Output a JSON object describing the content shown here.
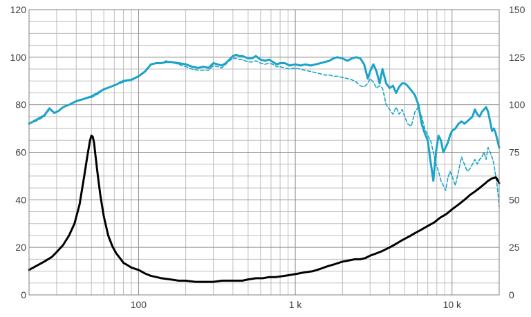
{
  "chart_data": {
    "type": "line",
    "title": "",
    "xlabel": "",
    "ylabel": "",
    "y2label": "",
    "x_scale": "log",
    "xlim": [
      20,
      20000
    ],
    "ylim": [
      0,
      120
    ],
    "y2lim": [
      0,
      150
    ],
    "grid": true,
    "legend": "none",
    "x_tick_labels": [
      {
        "value": 100,
        "label": "100"
      },
      {
        "value": 1000,
        "label": "1 k"
      },
      {
        "value": 10000,
        "label": "10 k"
      }
    ],
    "y_tick_labels": [
      "0",
      "20",
      "40",
      "60",
      "80",
      "100",
      "120"
    ],
    "y2_tick_labels": [
      "0",
      "25",
      "50",
      "75",
      "100",
      "125",
      "150"
    ],
    "series": [
      {
        "axis": "left",
        "color": "#1ba3c8",
        "style": "solid",
        "x": [
          20,
          22,
          25,
          27,
          29,
          31,
          33,
          36,
          40,
          45,
          50,
          55,
          60,
          66,
          72,
          80,
          90,
          100,
          110,
          120,
          130,
          140,
          150,
          160,
          180,
          200,
          220,
          240,
          260,
          280,
          300,
          320,
          340,
          360,
          380,
          400,
          420,
          440,
          460,
          480,
          500,
          530,
          560,
          600,
          640,
          680,
          720,
          760,
          800,
          860,
          920,
          1000,
          1080,
          1160,
          1250,
          1350,
          1450,
          1550,
          1650,
          1750,
          1850,
          2000,
          2150,
          2300,
          2450,
          2600,
          2750,
          2900,
          3000,
          3150,
          3300,
          3450,
          3600,
          3800,
          4000,
          4200,
          4400,
          4600,
          4800,
          5000,
          5200,
          5500,
          5800,
          6100,
          6400,
          6700,
          7000,
          7300,
          7600,
          7900,
          8200,
          8500,
          8800,
          9100,
          9400,
          9700,
          10000,
          10500,
          11000,
          11500,
          12000,
          12500,
          13000,
          13500,
          14000,
          14500,
          15000,
          15500,
          16000,
          16500,
          17000,
          17500,
          18000,
          18500,
          19000,
          19500,
          20000
        ],
        "y": [
          72,
          73.5,
          75.5,
          78.5,
          76.5,
          77.5,
          79,
          80,
          81.5,
          82.5,
          83.5,
          85,
          86.5,
          87.5,
          88.5,
          90,
          90.5,
          92,
          94,
          97,
          97.5,
          97.5,
          98,
          98,
          97.5,
          97,
          96,
          95.5,
          96,
          95.5,
          97.5,
          97,
          96.5,
          97.5,
          99,
          100.5,
          101,
          100.5,
          100.5,
          100,
          99.5,
          99.5,
          100.5,
          99,
          98.5,
          99,
          98,
          97,
          97.5,
          97.5,
          96.5,
          97,
          96.5,
          97,
          96.5,
          97,
          97.5,
          98,
          98.5,
          99.5,
          100,
          99.5,
          98.5,
          99.5,
          100,
          99.5,
          97,
          91,
          94,
          97,
          94,
          89,
          95,
          89,
          87,
          88,
          85,
          87.5,
          89,
          89,
          88,
          86,
          84,
          80,
          72,
          68,
          65,
          56,
          48,
          60,
          67,
          65,
          60,
          62,
          64,
          67,
          69,
          70,
          72,
          73,
          72,
          73,
          74,
          75,
          78,
          76,
          75,
          77,
          78,
          79,
          77,
          73,
          69,
          70,
          68,
          65,
          62
        ]
      },
      {
        "axis": "left",
        "color": "#1ba3c8",
        "style": "dashed",
        "x": [
          20,
          22,
          25,
          27,
          29,
          31,
          33,
          36,
          40,
          45,
          50,
          55,
          60,
          66,
          72,
          80,
          90,
          100,
          110,
          120,
          130,
          140,
          150,
          160,
          180,
          200,
          220,
          240,
          260,
          280,
          300,
          320,
          340,
          360,
          380,
          400,
          420,
          440,
          460,
          480,
          500,
          530,
          560,
          600,
          640,
          680,
          720,
          760,
          800,
          860,
          920,
          1000,
          1080,
          1160,
          1250,
          1350,
          1450,
          1550,
          1650,
          1750,
          1850,
          2000,
          2150,
          2300,
          2450,
          2600,
          2750,
          2900,
          3000,
          3150,
          3300,
          3450,
          3600,
          3800,
          4000,
          4200,
          4400,
          4600,
          4800,
          5000,
          5200,
          5500,
          5800,
          6100,
          6400,
          6700,
          7000,
          7300,
          7600,
          7900,
          8200,
          8500,
          8800,
          9100,
          9400,
          9700,
          10000,
          10500,
          11000,
          11500,
          12000,
          12500,
          13000,
          13500,
          14000,
          14500,
          15000,
          15500,
          16000,
          16500,
          17000,
          17500,
          18000,
          18500,
          19000,
          19500,
          20000
        ],
        "y": [
          72,
          73,
          75,
          78,
          76.5,
          77.5,
          79,
          80,
          81.5,
          82.5,
          83,
          84.5,
          86.5,
          87.5,
          88.5,
          89.5,
          90.5,
          92,
          94,
          97,
          97.5,
          97.5,
          98.5,
          98,
          97,
          96,
          95,
          94.5,
          94.5,
          94.5,
          96.5,
          96,
          95.5,
          97,
          98.5,
          99.5,
          99.5,
          99,
          99,
          98.5,
          98,
          98,
          98.5,
          97.5,
          97,
          97.5,
          97,
          96,
          96,
          95.5,
          95,
          95.5,
          95,
          94.5,
          94,
          93.5,
          93,
          92.5,
          92.5,
          92,
          92,
          91.5,
          91,
          90.5,
          89.5,
          88,
          87.5,
          89,
          91,
          89.5,
          87,
          88,
          87,
          80,
          78,
          76,
          79,
          76,
          78,
          75,
          72,
          71,
          77,
          79,
          75,
          70,
          67,
          65,
          60,
          55,
          52,
          48,
          46,
          44,
          49,
          52,
          50,
          46,
          52,
          58,
          55,
          52,
          53,
          55,
          57,
          55,
          57,
          58,
          60,
          57,
          62,
          60,
          58,
          55,
          50,
          45,
          37
        ]
      },
      {
        "axis": "left",
        "color": "#000000",
        "style": "solid",
        "x": [
          20,
          22,
          25,
          28,
          30,
          33,
          36,
          39,
          42,
          45,
          47,
          49,
          50,
          51,
          52,
          53,
          55,
          57,
          60,
          64,
          68,
          72,
          76,
          80,
          85,
          90,
          95,
          100,
          110,
          120,
          130,
          140,
          160,
          180,
          200,
          230,
          260,
          300,
          340,
          380,
          420,
          460,
          500,
          560,
          620,
          680,
          750,
          850,
          950,
          1050,
          1150,
          1300,
          1450,
          1600,
          1800,
          2000,
          2200,
          2400,
          2600,
          2800,
          3000,
          3300,
          3600,
          4000,
          4400,
          4800,
          5300,
          5800,
          6400,
          7000,
          7700,
          8400,
          9200,
          10000,
          11000,
          12000,
          13000,
          14000,
          15000,
          16000,
          17000,
          18000,
          19000,
          19500,
          20000
        ],
        "y": [
          10.5,
          12,
          14,
          16,
          18,
          21,
          25,
          30,
          38,
          50,
          58,
          65,
          67,
          66.5,
          64,
          59,
          50,
          42,
          33,
          25,
          20.5,
          17.5,
          15.5,
          13.5,
          12.5,
          11.5,
          11,
          10.5,
          9,
          8,
          7.5,
          7,
          6.5,
          6,
          6,
          5.5,
          5.5,
          5.5,
          6,
          6,
          6,
          6,
          6.5,
          7,
          7,
          7.5,
          7.5,
          8,
          8.5,
          9,
          9.5,
          10,
          11,
          12,
          13,
          14,
          14.5,
          15,
          15,
          15.5,
          16.5,
          17.5,
          18.5,
          20,
          21.5,
          23,
          24.5,
          26,
          27.5,
          29,
          30.5,
          32.5,
          34,
          36,
          38,
          40,
          42,
          43.5,
          45,
          46.5,
          48,
          49,
          49.5,
          48.5,
          47
        ]
      }
    ]
  }
}
